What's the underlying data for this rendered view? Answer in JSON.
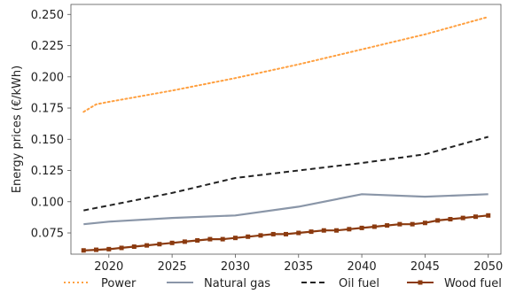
{
  "chart_data": {
    "type": "line",
    "xlabel": "",
    "ylabel": "Energy prices (€/kWh)",
    "xlim": [
      2017,
      2051
    ],
    "ylim": [
      0.058,
      0.258
    ],
    "xticks": [
      "2020",
      "2025",
      "2030",
      "2035",
      "2040",
      "2045",
      "2050"
    ],
    "yticks": [
      "0.075",
      "0.100",
      "0.125",
      "0.150",
      "0.175",
      "0.200",
      "0.225",
      "0.250"
    ],
    "grid": false,
    "legend_position": "bottom",
    "series": [
      {
        "name": "Power",
        "color": "#FFA040",
        "line_style": "dotted",
        "marker": "none",
        "x": [
          2018,
          2019,
          2020,
          2025,
          2030,
          2035,
          2040,
          2045,
          2050
        ],
        "y": [
          0.172,
          0.178,
          0.18,
          0.189,
          0.199,
          0.21,
          0.222,
          0.234,
          0.248
        ]
      },
      {
        "name": "Natural gas",
        "color": "#8A96A8",
        "line_style": "solid",
        "marker": "none",
        "x": [
          2018,
          2020,
          2025,
          2030,
          2035,
          2040,
          2045,
          2050
        ],
        "y": [
          0.082,
          0.084,
          0.087,
          0.089,
          0.096,
          0.106,
          0.104,
          0.106
        ]
      },
      {
        "name": "Oil fuel",
        "color": "#222222",
        "line_style": "dashed",
        "marker": "none",
        "x": [
          2018,
          2020,
          2025,
          2030,
          2035,
          2040,
          2045,
          2050
        ],
        "y": [
          0.093,
          0.097,
          0.107,
          0.119,
          0.125,
          0.131,
          0.138,
          0.152
        ]
      },
      {
        "name": "Wood fuel",
        "color": "#8B3A0F",
        "line_style": "solid",
        "marker": "square",
        "x": [
          2018,
          2019,
          2020,
          2021,
          2022,
          2023,
          2024,
          2025,
          2026,
          2027,
          2028,
          2029,
          2030,
          2031,
          2032,
          2033,
          2034,
          2035,
          2036,
          2037,
          2038,
          2039,
          2040,
          2041,
          2042,
          2043,
          2044,
          2045,
          2046,
          2047,
          2048,
          2049,
          2050
        ],
        "y": [
          0.061,
          0.0615,
          0.062,
          0.063,
          0.064,
          0.065,
          0.066,
          0.067,
          0.068,
          0.069,
          0.07,
          0.07,
          0.071,
          0.072,
          0.073,
          0.074,
          0.074,
          0.075,
          0.076,
          0.077,
          0.077,
          0.078,
          0.079,
          0.08,
          0.081,
          0.082,
          0.082,
          0.083,
          0.085,
          0.086,
          0.087,
          0.088,
          0.089
        ]
      }
    ]
  }
}
